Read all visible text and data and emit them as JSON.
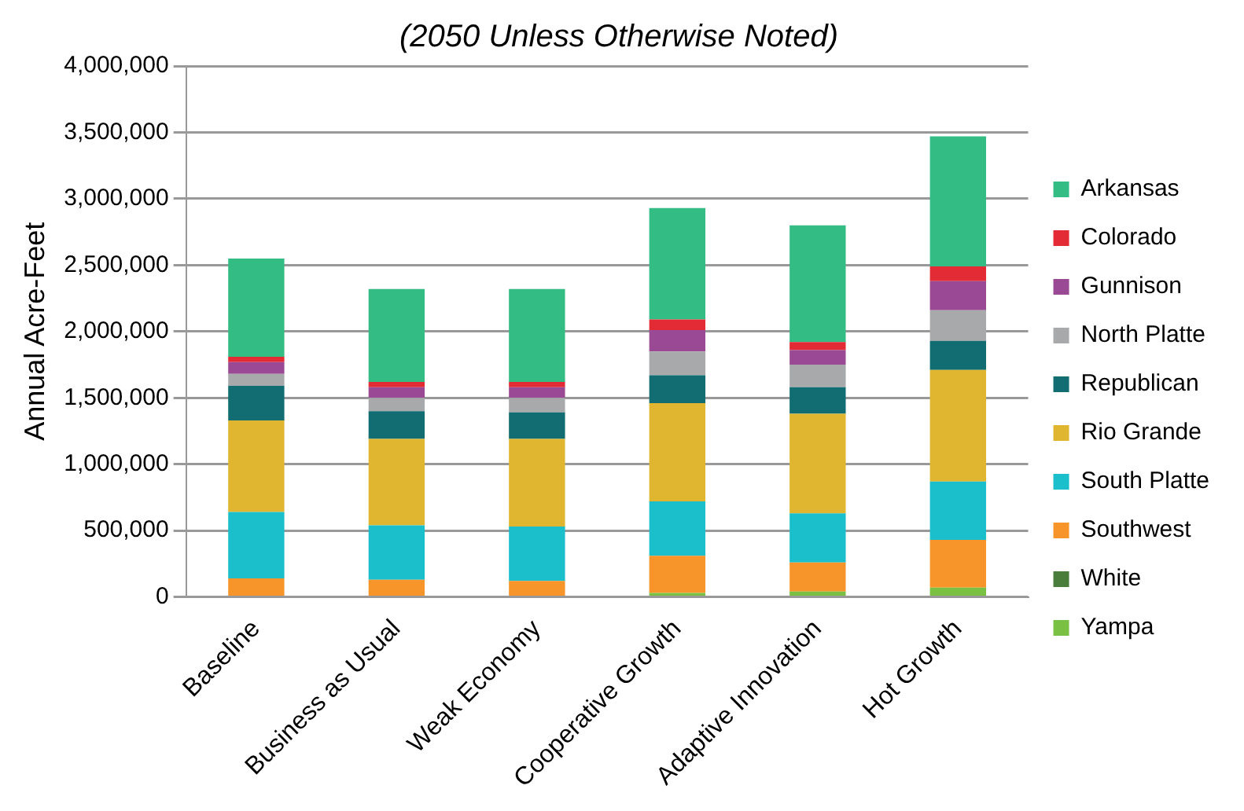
{
  "chart_data": {
    "type": "bar",
    "subtitle": "(2050 Unless Otherwise Noted)",
    "ylabel": "Annual Acre-Feet",
    "stacked": true,
    "categories": [
      "Baseline",
      "Business as Usual",
      "Weak Economy",
      "Cooperative Growth",
      "Adaptive Innovation",
      "Hot Growth"
    ],
    "ylim": [
      0,
      4000000
    ],
    "yticks": [
      0,
      {
        "value": 500000,
        "label": "500,000"
      },
      {
        "value": 1000000,
        "label": "1,000,000"
      },
      {
        "value": 1500000,
        "label": "1,500,000"
      },
      {
        "value": 2000000,
        "label": "2,000,000"
      },
      {
        "value": 2500000,
        "label": "2,500,000"
      },
      {
        "value": 3000000,
        "label": "3,000,000"
      },
      {
        "value": 3500000,
        "label": "3,500,000"
      },
      {
        "value": 4000000,
        "label": "4,000,000"
      }
    ],
    "grid": "y",
    "legend": "right",
    "series": [
      {
        "name": "Yampa",
        "color": "#7ac143",
        "values": [
          0,
          0,
          0,
          30000,
          40000,
          70000
        ]
      },
      {
        "name": "White",
        "color": "#4a7d3c",
        "values": [
          0,
          0,
          0,
          0,
          0,
          0
        ]
      },
      {
        "name": "Southwest",
        "color": "#f7952b",
        "values": [
          140000,
          130000,
          120000,
          280000,
          220000,
          360000
        ]
      },
      {
        "name": "South Platte",
        "color": "#1bbfcb",
        "values": [
          500000,
          410000,
          410000,
          410000,
          370000,
          440000
        ]
      },
      {
        "name": "Rio Grande",
        "color": "#e0b631",
        "values": [
          690000,
          650000,
          660000,
          740000,
          750000,
          840000
        ]
      },
      {
        "name": "Republican",
        "color": "#116d72",
        "values": [
          260000,
          210000,
          200000,
          210000,
          200000,
          220000
        ]
      },
      {
        "name": "North Platte",
        "color": "#a8a9ab",
        "values": [
          90000,
          100000,
          110000,
          180000,
          170000,
          230000
        ]
      },
      {
        "name": "Gunnison",
        "color": "#9a4a94",
        "values": [
          90000,
          80000,
          80000,
          160000,
          110000,
          220000
        ]
      },
      {
        "name": "Colorado",
        "color": "#e32b35",
        "values": [
          40000,
          40000,
          40000,
          80000,
          60000,
          110000
        ]
      },
      {
        "name": "Arkansas",
        "color": "#34bc85",
        "values": [
          740000,
          700000,
          700000,
          840000,
          880000,
          980000
        ]
      }
    ]
  }
}
